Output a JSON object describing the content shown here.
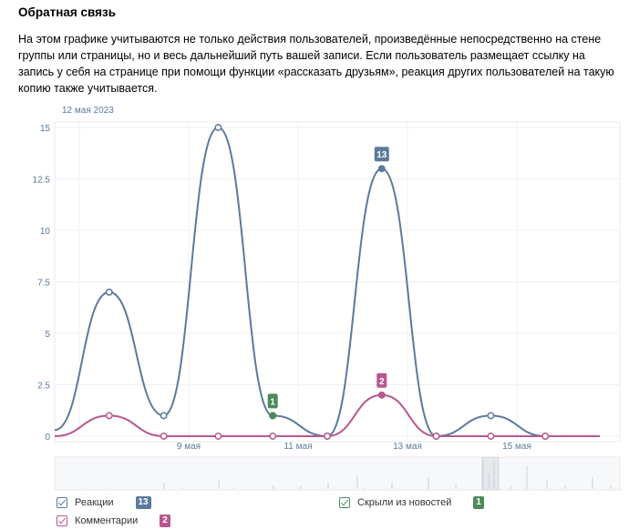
{
  "section": {
    "title": "Обратная связь",
    "description": "На этом графике учитываются не только действия пользователей, произведённые непосредственно на стене группы или страницы, но и весь дальнейший путь вашей записи. Если пользователь размещает ссылку на запись у себя на странице при помощи функции «рассказать друзьям», реакция других пользователей на такую копию также учитывается."
  },
  "legend": [
    {
      "label": "Реакции",
      "badge": "13",
      "color": "#5b7a9d"
    },
    {
      "label": "Комментарии",
      "badge": "2",
      "color": "#b8578f"
    },
    {
      "label": "Скрыли из новостей",
      "badge": "1",
      "color": "#4e8a5c"
    }
  ],
  "chart_data": {
    "type": "line",
    "date_label": "12 мая 2023",
    "yticks": [
      "15",
      "12.5",
      "10",
      "7.5",
      "5",
      "2.5",
      "0"
    ],
    "xticks": [
      "9 мая",
      "11 мая",
      "13 мая",
      "15 мая"
    ],
    "ylim": [
      0,
      15
    ],
    "series": [
      {
        "name": "Реакции",
        "color": "#5b7a9d",
        "x": [
          0,
          1,
          2,
          3,
          4,
          5,
          6,
          7,
          8,
          9,
          10
        ],
        "values": [
          0.3,
          7,
          1,
          15,
          1,
          0,
          13,
          0,
          1,
          0,
          0
        ]
      },
      {
        "name": "Комментарии",
        "color": "#b8578f",
        "x": [
          0,
          1,
          2,
          3,
          4,
          5,
          6,
          7,
          8,
          9,
          10
        ],
        "values": [
          0,
          1,
          0,
          0,
          0,
          0,
          2,
          0,
          0,
          0,
          0
        ]
      },
      {
        "name": "Скрыли из новостей",
        "color": "#4e8a5c",
        "x": [
          4
        ],
        "values": [
          1
        ]
      }
    ],
    "annotations": [
      {
        "series": "Реакции",
        "x": 6,
        "label": "13"
      },
      {
        "series": "Комментарии",
        "x": 6,
        "label": "2"
      },
      {
        "series": "Скрыли из новостей",
        "x": 4,
        "label": "1"
      }
    ],
    "grid": true
  }
}
